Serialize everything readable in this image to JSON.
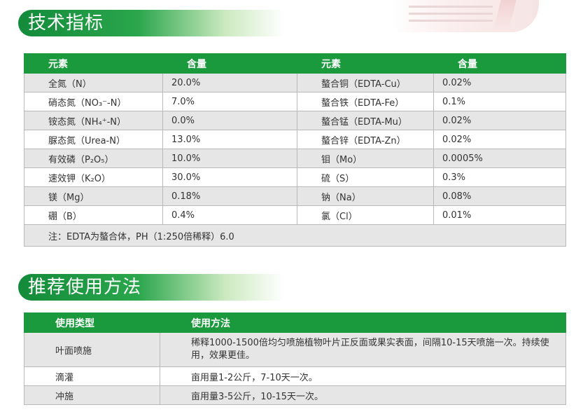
{
  "sections": {
    "spec_title": "技术指标",
    "usage_title": "推荐使用方法"
  },
  "spec_table": {
    "headers": [
      "元素",
      "含量",
      "元素",
      "含量"
    ],
    "rows": [
      [
        "全氮（N）",
        "20.0%",
        "螯合铜（EDTA-Cu）",
        "0.02%"
      ],
      [
        "硝态氮（NO₃⁻-N）",
        "7.0%",
        "螯合铁（EDTA-Fe）",
        "0.1%"
      ],
      [
        "铵态氮（NH₄⁺-N）",
        "0.0%",
        "螯合锰（EDTA-Mu）",
        "0.02%"
      ],
      [
        "脲态氮（Urea-N）",
        "13.0%",
        "螯合锌（EDTA-Zn）",
        "0.02%"
      ],
      [
        "有效磷（P₂O₅）",
        "10.0%",
        "钼（Mo）",
        "0.0005%"
      ],
      [
        "速效钾（K₂O）",
        "30.0%",
        "硫（S）",
        "0.3%"
      ],
      [
        "镁（Mg）",
        "0.18%",
        "钠（Na）",
        "0.08%"
      ],
      [
        "硼（B）",
        "0.4%",
        "氯（Cl）",
        "0.01%"
      ]
    ],
    "note": "注：EDTA为螯合体，PH（1:250倍稀释）6.0"
  },
  "usage_table": {
    "headers": [
      "使用类型",
      "使用方法"
    ],
    "rows": [
      [
        "叶面喷施",
        "稀释1000-1500倍均匀喷施植物叶片正反面或果实表面，间隔10-15天喷施一次。持续使用，效果更佳。"
      ],
      [
        "滴灌",
        "亩用量1-2公斤，7-10天一次。"
      ],
      [
        "冲施",
        "亩用量3-5公斤，10-15天一次。"
      ]
    ]
  },
  "colors": {
    "header_green": "#1a9a3c",
    "row_gray": "#e6e6e6",
    "border": "#b9b9b9"
  }
}
